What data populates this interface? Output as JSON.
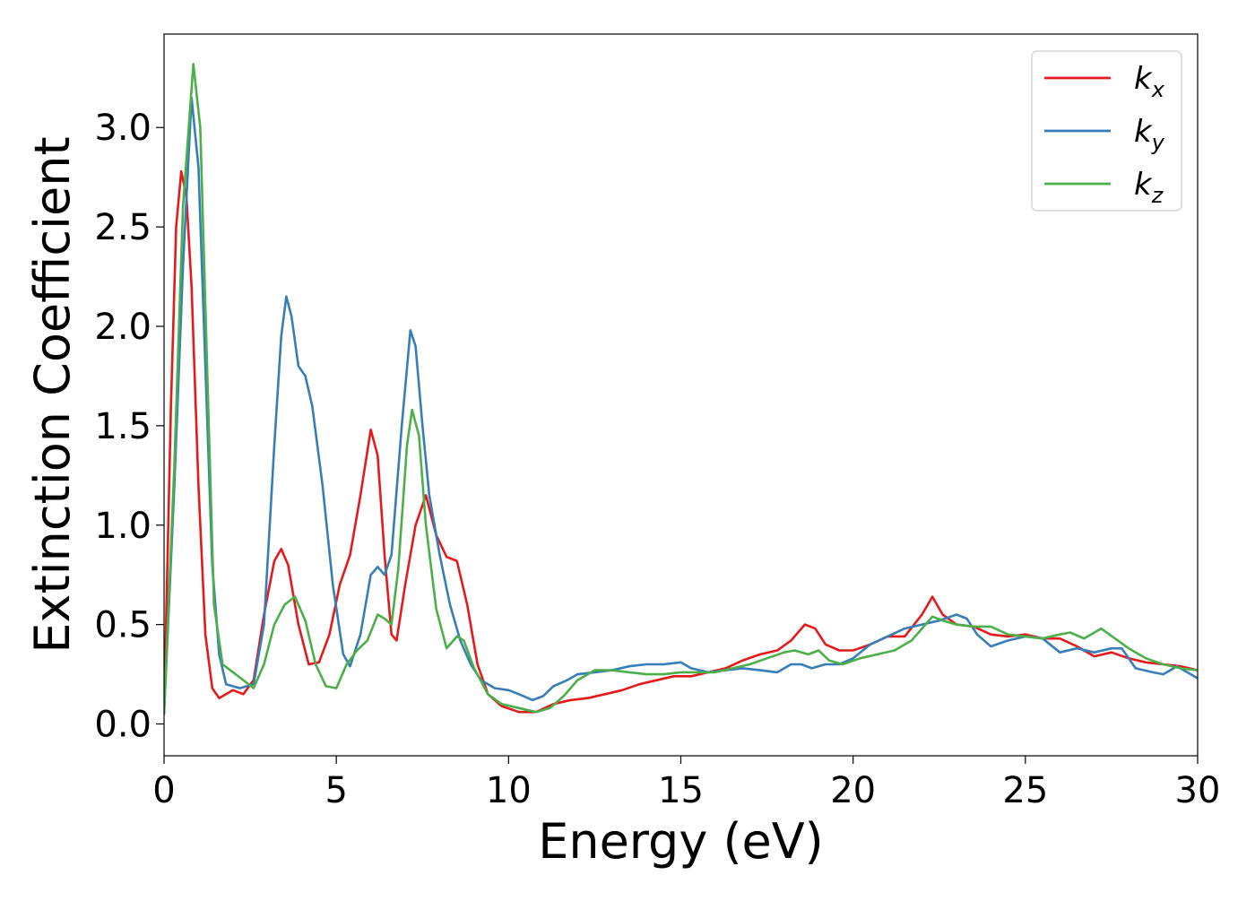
{
  "chart_data": {
    "type": "line",
    "title": "",
    "xlabel": "Energy (eV)",
    "ylabel": "Extinction Coefficient",
    "xlim": [
      0,
      30
    ],
    "ylim": [
      -0.16,
      3.47
    ],
    "xticks": [
      0,
      5,
      10,
      15,
      20,
      25,
      30
    ],
    "xtick_labels": [
      "0",
      "5",
      "10",
      "15",
      "20",
      "25",
      "30"
    ],
    "yticks": [
      0.0,
      0.5,
      1.0,
      1.5,
      2.0,
      2.5,
      3.0
    ],
    "ytick_labels": [
      "0.0",
      "0.5",
      "1.0",
      "1.5",
      "2.0",
      "2.5",
      "3.0"
    ],
    "grid": false,
    "legend_position": "top-right",
    "series": [
      {
        "name": "k",
        "subscript": "x",
        "color": "#e41a1c",
        "points": [
          [
            0,
            0.05
          ],
          [
            0.2,
            1.6
          ],
          [
            0.35,
            2.5
          ],
          [
            0.5,
            2.78
          ],
          [
            0.65,
            2.65
          ],
          [
            0.8,
            2.2
          ],
          [
            1.0,
            1.2
          ],
          [
            1.2,
            0.45
          ],
          [
            1.4,
            0.18
          ],
          [
            1.6,
            0.13
          ],
          [
            1.8,
            0.15
          ],
          [
            2.0,
            0.17
          ],
          [
            2.3,
            0.15
          ],
          [
            2.6,
            0.22
          ],
          [
            2.9,
            0.55
          ],
          [
            3.2,
            0.82
          ],
          [
            3.4,
            0.88
          ],
          [
            3.6,
            0.8
          ],
          [
            3.9,
            0.5
          ],
          [
            4.2,
            0.3
          ],
          [
            4.5,
            0.31
          ],
          [
            4.8,
            0.45
          ],
          [
            5.1,
            0.7
          ],
          [
            5.4,
            0.85
          ],
          [
            5.7,
            1.15
          ],
          [
            6.0,
            1.48
          ],
          [
            6.2,
            1.35
          ],
          [
            6.4,
            0.85
          ],
          [
            6.6,
            0.45
          ],
          [
            6.75,
            0.42
          ],
          [
            7.0,
            0.7
          ],
          [
            7.3,
            1.0
          ],
          [
            7.6,
            1.15
          ],
          [
            7.9,
            0.95
          ],
          [
            8.2,
            0.84
          ],
          [
            8.5,
            0.82
          ],
          [
            8.8,
            0.6
          ],
          [
            9.1,
            0.3
          ],
          [
            9.4,
            0.15
          ],
          [
            9.8,
            0.09
          ],
          [
            10.3,
            0.06
          ],
          [
            10.8,
            0.06
          ],
          [
            11.3,
            0.1
          ],
          [
            11.8,
            0.12
          ],
          [
            12.3,
            0.13
          ],
          [
            12.8,
            0.15
          ],
          [
            13.3,
            0.17
          ],
          [
            13.8,
            0.2
          ],
          [
            14.3,
            0.22
          ],
          [
            14.8,
            0.24
          ],
          [
            15.3,
            0.24
          ],
          [
            15.8,
            0.26
          ],
          [
            16.3,
            0.28
          ],
          [
            16.8,
            0.32
          ],
          [
            17.3,
            0.35
          ],
          [
            17.8,
            0.37
          ],
          [
            18.2,
            0.42
          ],
          [
            18.6,
            0.5
          ],
          [
            18.9,
            0.48
          ],
          [
            19.2,
            0.4
          ],
          [
            19.6,
            0.37
          ],
          [
            20.0,
            0.37
          ],
          [
            20.5,
            0.4
          ],
          [
            21.0,
            0.44
          ],
          [
            21.5,
            0.44
          ],
          [
            22.0,
            0.55
          ],
          [
            22.3,
            0.64
          ],
          [
            22.6,
            0.55
          ],
          [
            23.0,
            0.5
          ],
          [
            23.5,
            0.49
          ],
          [
            24.0,
            0.45
          ],
          [
            24.5,
            0.44
          ],
          [
            25.0,
            0.45
          ],
          [
            25.5,
            0.43
          ],
          [
            26.0,
            0.43
          ],
          [
            26.5,
            0.39
          ],
          [
            27.0,
            0.34
          ],
          [
            27.5,
            0.36
          ],
          [
            28.0,
            0.33
          ],
          [
            28.5,
            0.31
          ],
          [
            29.0,
            0.3
          ],
          [
            29.5,
            0.29
          ],
          [
            30.0,
            0.27
          ]
        ]
      },
      {
        "name": "k",
        "subscript": "y",
        "color": "#377eb8",
        "points": [
          [
            0,
            0.05
          ],
          [
            0.3,
            1.2
          ],
          [
            0.55,
            2.3
          ],
          [
            0.8,
            3.15
          ],
          [
            1.0,
            2.8
          ],
          [
            1.2,
            1.8
          ],
          [
            1.4,
            0.8
          ],
          [
            1.6,
            0.35
          ],
          [
            1.8,
            0.2
          ],
          [
            2.2,
            0.18
          ],
          [
            2.6,
            0.2
          ],
          [
            2.9,
            0.5
          ],
          [
            3.2,
            1.4
          ],
          [
            3.4,
            1.95
          ],
          [
            3.55,
            2.15
          ],
          [
            3.7,
            2.05
          ],
          [
            3.9,
            1.8
          ],
          [
            4.1,
            1.75
          ],
          [
            4.3,
            1.6
          ],
          [
            4.6,
            1.2
          ],
          [
            4.9,
            0.7
          ],
          [
            5.2,
            0.35
          ],
          [
            5.4,
            0.29
          ],
          [
            5.7,
            0.45
          ],
          [
            6.0,
            0.75
          ],
          [
            6.2,
            0.79
          ],
          [
            6.4,
            0.75
          ],
          [
            6.6,
            0.85
          ],
          [
            6.9,
            1.5
          ],
          [
            7.15,
            1.98
          ],
          [
            7.3,
            1.9
          ],
          [
            7.5,
            1.5
          ],
          [
            7.7,
            1.15
          ],
          [
            8.0,
            0.85
          ],
          [
            8.3,
            0.6
          ],
          [
            8.6,
            0.42
          ],
          [
            8.9,
            0.3
          ],
          [
            9.2,
            0.22
          ],
          [
            9.6,
            0.18
          ],
          [
            10.0,
            0.17
          ],
          [
            10.3,
            0.15
          ],
          [
            10.7,
            0.12
          ],
          [
            11.0,
            0.14
          ],
          [
            11.3,
            0.19
          ],
          [
            11.7,
            0.22
          ],
          [
            12.0,
            0.25
          ],
          [
            12.5,
            0.26
          ],
          [
            13.0,
            0.27
          ],
          [
            13.5,
            0.29
          ],
          [
            14.0,
            0.3
          ],
          [
            14.5,
            0.3
          ],
          [
            15.0,
            0.31
          ],
          [
            15.3,
            0.28
          ],
          [
            15.8,
            0.26
          ],
          [
            16.3,
            0.27
          ],
          [
            16.8,
            0.28
          ],
          [
            17.3,
            0.27
          ],
          [
            17.8,
            0.26
          ],
          [
            18.2,
            0.3
          ],
          [
            18.5,
            0.3
          ],
          [
            18.8,
            0.28
          ],
          [
            19.2,
            0.3
          ],
          [
            19.6,
            0.3
          ],
          [
            20.0,
            0.33
          ],
          [
            20.5,
            0.4
          ],
          [
            21.0,
            0.44
          ],
          [
            21.5,
            0.48
          ],
          [
            22.0,
            0.5
          ],
          [
            22.5,
            0.52
          ],
          [
            23.0,
            0.55
          ],
          [
            23.3,
            0.53
          ],
          [
            23.6,
            0.45
          ],
          [
            24.0,
            0.39
          ],
          [
            24.5,
            0.42
          ],
          [
            25.0,
            0.44
          ],
          [
            25.5,
            0.43
          ],
          [
            26.0,
            0.36
          ],
          [
            26.5,
            0.38
          ],
          [
            27.0,
            0.36
          ],
          [
            27.5,
            0.38
          ],
          [
            27.8,
            0.38
          ],
          [
            28.2,
            0.28
          ],
          [
            28.7,
            0.26
          ],
          [
            29.0,
            0.25
          ],
          [
            29.4,
            0.29
          ],
          [
            30.0,
            0.23
          ]
        ]
      },
      {
        "name": "k",
        "subscript": "z",
        "color": "#4daf4a",
        "points": [
          [
            0,
            0.05
          ],
          [
            0.3,
            1.3
          ],
          [
            0.55,
            2.6
          ],
          [
            0.85,
            3.32
          ],
          [
            1.05,
            3.0
          ],
          [
            1.25,
            1.8
          ],
          [
            1.45,
            0.6
          ],
          [
            1.7,
            0.3
          ],
          [
            2.0,
            0.26
          ],
          [
            2.3,
            0.22
          ],
          [
            2.6,
            0.18
          ],
          [
            2.9,
            0.3
          ],
          [
            3.2,
            0.5
          ],
          [
            3.5,
            0.6
          ],
          [
            3.8,
            0.64
          ],
          [
            4.1,
            0.52
          ],
          [
            4.4,
            0.3
          ],
          [
            4.7,
            0.19
          ],
          [
            5.0,
            0.18
          ],
          [
            5.3,
            0.3
          ],
          [
            5.6,
            0.37
          ],
          [
            5.9,
            0.42
          ],
          [
            6.2,
            0.55
          ],
          [
            6.4,
            0.53
          ],
          [
            6.6,
            0.5
          ],
          [
            6.8,
            0.78
          ],
          [
            7.05,
            1.4
          ],
          [
            7.2,
            1.58
          ],
          [
            7.4,
            1.45
          ],
          [
            7.6,
            1.0
          ],
          [
            7.9,
            0.58
          ],
          [
            8.2,
            0.38
          ],
          [
            8.5,
            0.44
          ],
          [
            8.7,
            0.42
          ],
          [
            9.0,
            0.28
          ],
          [
            9.4,
            0.15
          ],
          [
            9.8,
            0.1
          ],
          [
            10.3,
            0.08
          ],
          [
            10.8,
            0.06
          ],
          [
            11.2,
            0.08
          ],
          [
            11.6,
            0.14
          ],
          [
            12.0,
            0.22
          ],
          [
            12.5,
            0.27
          ],
          [
            13.0,
            0.27
          ],
          [
            13.5,
            0.26
          ],
          [
            14.0,
            0.25
          ],
          [
            14.5,
            0.25
          ],
          [
            15.0,
            0.26
          ],
          [
            15.5,
            0.26
          ],
          [
            16.0,
            0.26
          ],
          [
            16.5,
            0.28
          ],
          [
            17.0,
            0.3
          ],
          [
            17.5,
            0.33
          ],
          [
            18.0,
            0.36
          ],
          [
            18.3,
            0.37
          ],
          [
            18.7,
            0.35
          ],
          [
            19.0,
            0.37
          ],
          [
            19.3,
            0.32
          ],
          [
            19.7,
            0.3
          ],
          [
            20.2,
            0.33
          ],
          [
            20.7,
            0.35
          ],
          [
            21.2,
            0.37
          ],
          [
            21.7,
            0.42
          ],
          [
            22.0,
            0.48
          ],
          [
            22.3,
            0.54
          ],
          [
            22.6,
            0.52
          ],
          [
            23.0,
            0.5
          ],
          [
            23.5,
            0.49
          ],
          [
            24.0,
            0.49
          ],
          [
            24.5,
            0.45
          ],
          [
            25.0,
            0.44
          ],
          [
            25.5,
            0.43
          ],
          [
            26.0,
            0.45
          ],
          [
            26.3,
            0.46
          ],
          [
            26.7,
            0.43
          ],
          [
            27.2,
            0.48
          ],
          [
            27.6,
            0.43
          ],
          [
            28.0,
            0.38
          ],
          [
            28.5,
            0.33
          ],
          [
            29.0,
            0.3
          ],
          [
            29.5,
            0.28
          ],
          [
            30.0,
            0.27
          ]
        ]
      }
    ]
  }
}
